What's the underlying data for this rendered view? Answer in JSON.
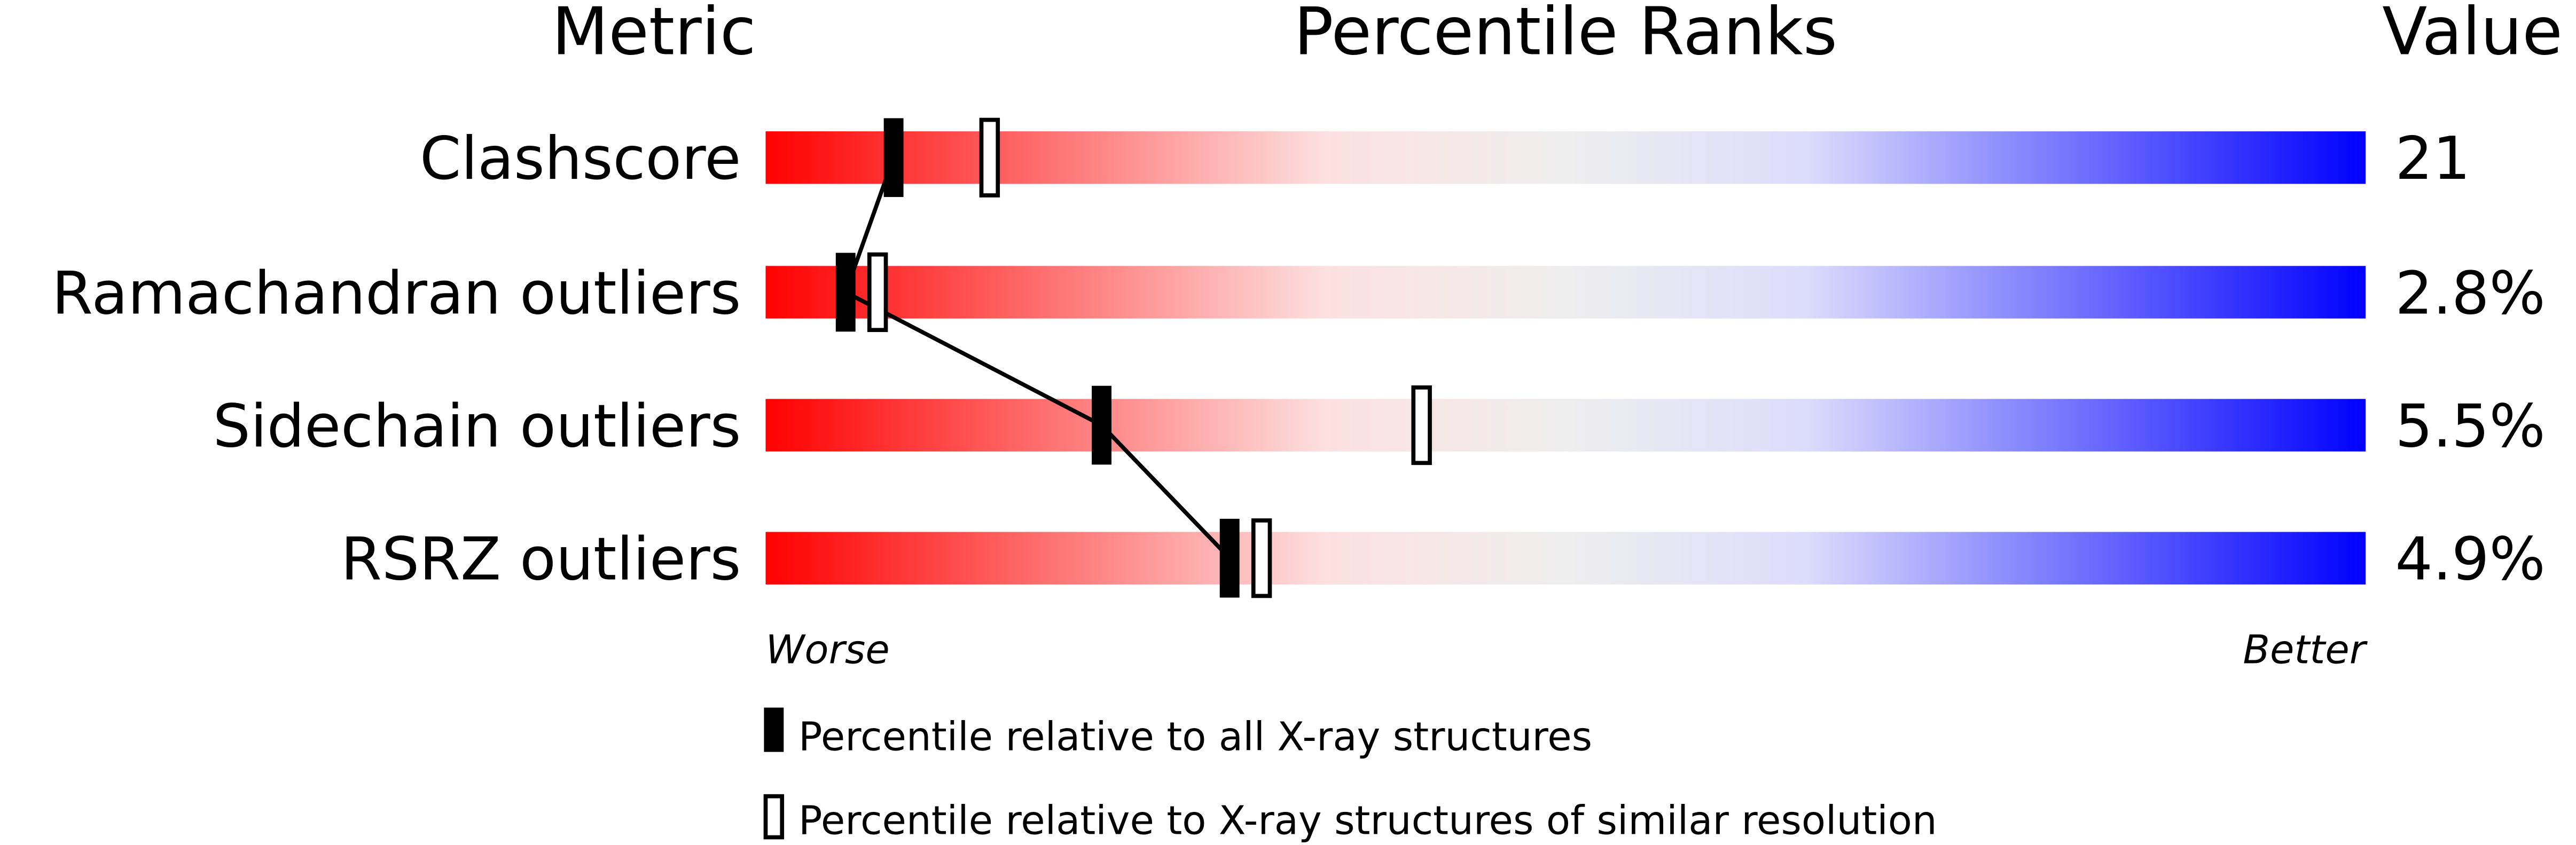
{
  "chart_data": {
    "type": "bar",
    "headers": {
      "metric": "Metric",
      "ranks": "Percentile Ranks",
      "value": "Value"
    },
    "xlim": [
      0,
      100
    ],
    "worse_label": "Worse",
    "better_label": "Better",
    "colors": {
      "worse": "#ff0000",
      "middle": "#eeeeee",
      "better": "#0000ff",
      "marker": "#000000"
    },
    "metrics": [
      {
        "name": "Clashscore",
        "value": "21",
        "percentile_all": 8,
        "percentile_similar": 14
      },
      {
        "name": "Ramachandran outliers",
        "value": "2.8%",
        "percentile_all": 5,
        "percentile_similar": 7
      },
      {
        "name": "Sidechain outliers",
        "value": "5.5%",
        "percentile_all": 21,
        "percentile_similar": 41
      },
      {
        "name": "RSRZ outliers",
        "value": "4.9%",
        "percentile_all": 29,
        "percentile_similar": 31
      }
    ],
    "legend": [
      {
        "marker": "filled",
        "label": "Percentile relative to all X-ray structures"
      },
      {
        "marker": "open",
        "label": "Percentile relative to X-ray structures of similar resolution"
      }
    ]
  }
}
